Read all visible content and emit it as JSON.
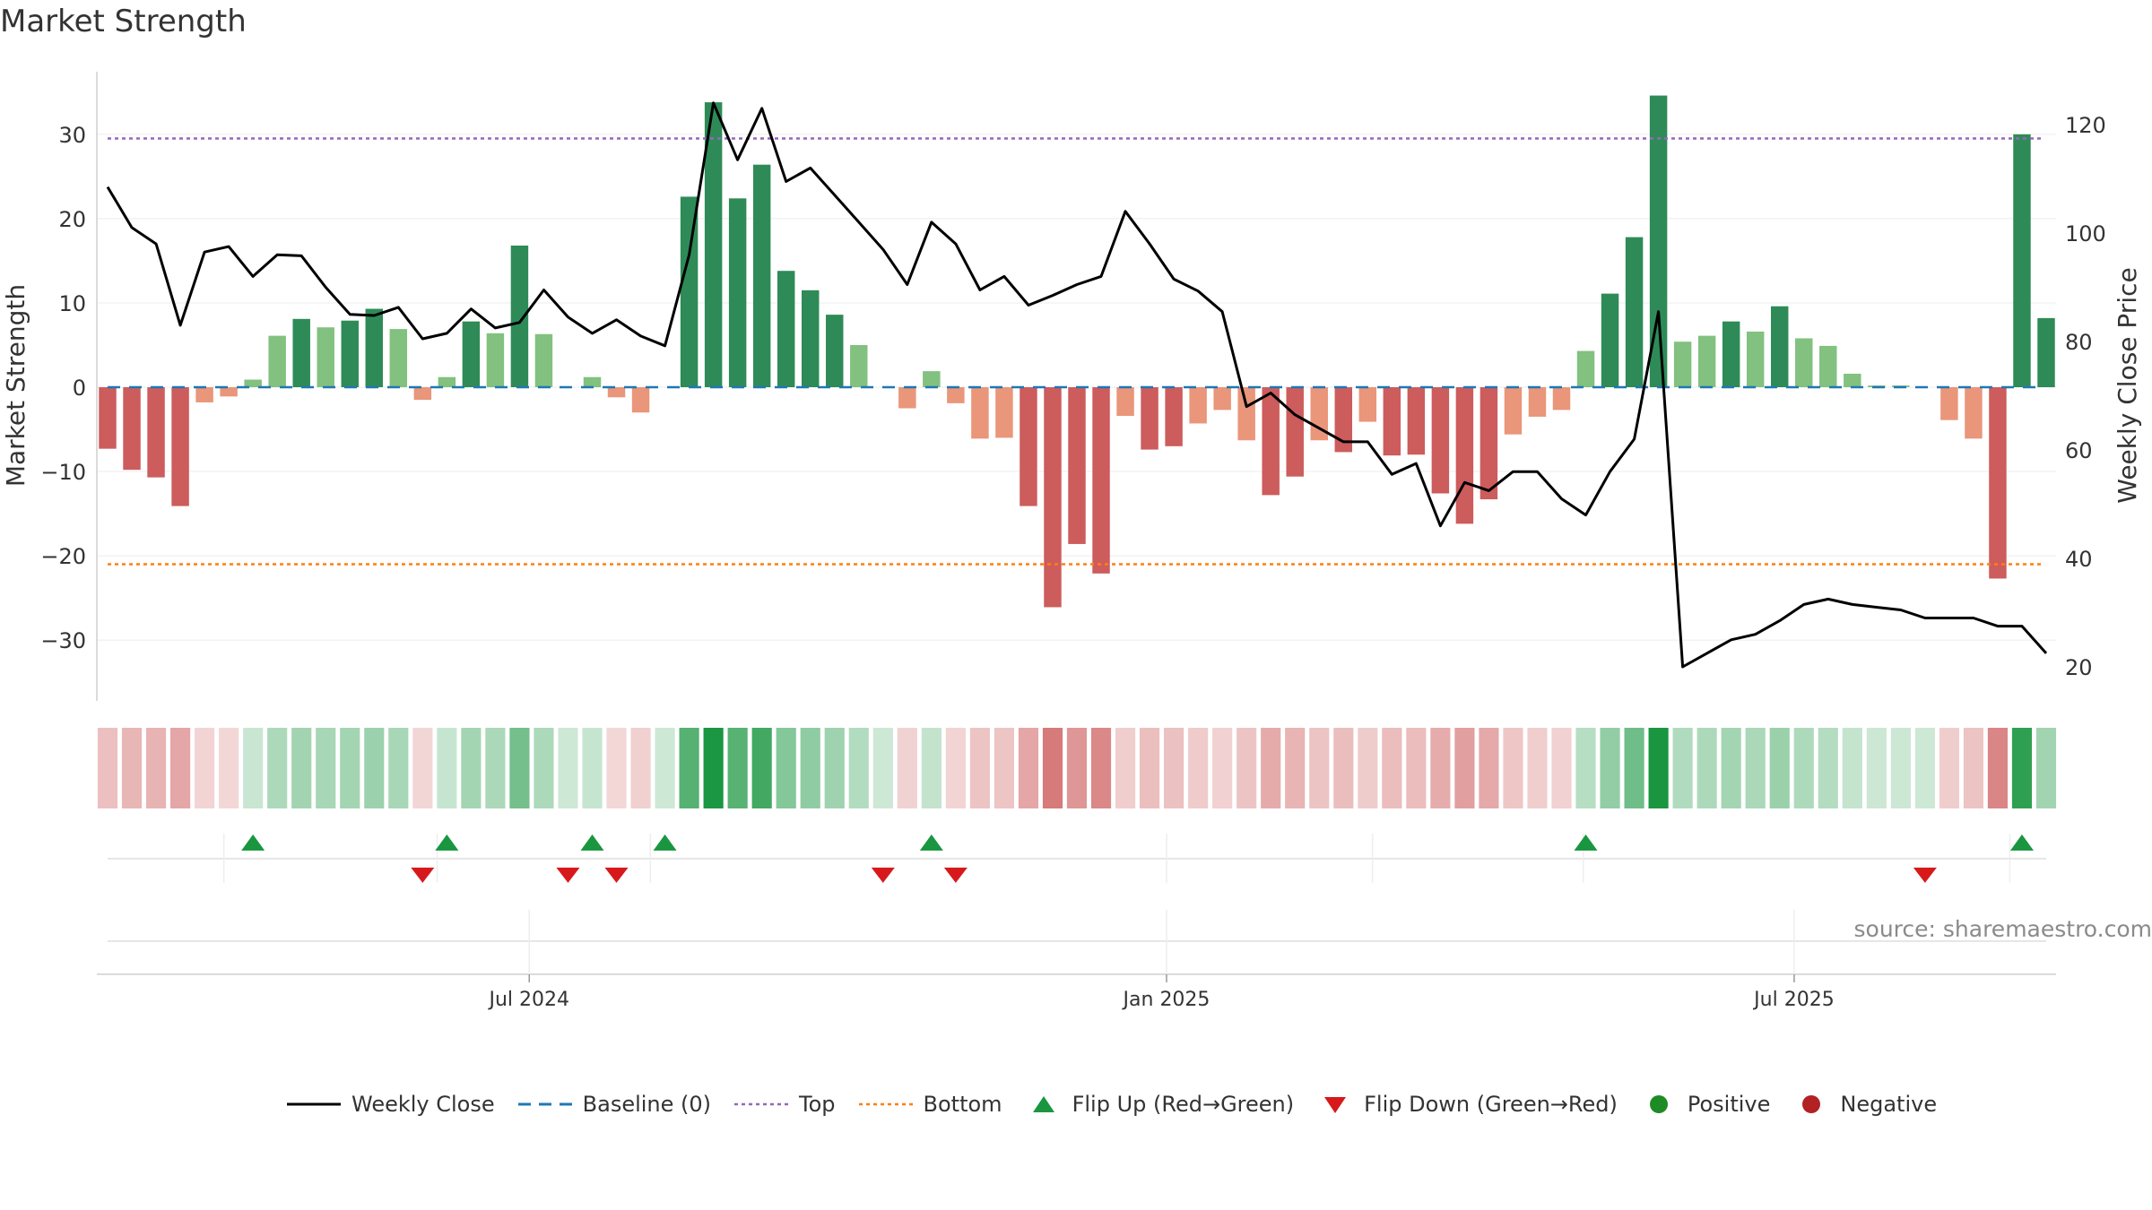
{
  "chart_data": {
    "type": "bar",
    "title": "Market Strength",
    "ylabel": "Market Strength",
    "y2label": "Weekly Close Price",
    "ylim": [
      -37,
      37
    ],
    "y2lim": [
      17,
      130
    ],
    "yticks": [
      30,
      20,
      10,
      0,
      -10,
      -20,
      -30
    ],
    "y2ticks": [
      120,
      100,
      80,
      60,
      40,
      20
    ],
    "y_tick_labels": [
      "30",
      "20",
      "10",
      "0",
      "−10",
      "−20",
      "−30"
    ],
    "y2_tick_labels": [
      "120",
      "100",
      "80",
      "60",
      "40",
      "20"
    ],
    "x_tick_labels": [
      "Jul 2024",
      "Jan 2025",
      "Jul 2025"
    ],
    "x_tick_positions_week": [
      17.4,
      43.7,
      69.6
    ],
    "top_line": 29.5,
    "bottom_line": -21,
    "strength": [
      -7.3,
      -9.8,
      -10.7,
      -14.1,
      -1.8,
      -1.1,
      0.9,
      6.1,
      8.1,
      7.1,
      7.9,
      9.3,
      6.9,
      -1.5,
      1.2,
      7.8,
      6.4,
      16.8,
      6.3,
      0,
      1.2,
      -1.2,
      -3.0,
      0,
      22.6,
      33.8,
      22.4,
      26.4,
      13.8,
      11.5,
      8.6,
      5.0,
      0,
      -2.5,
      1.9,
      -1.9,
      -6.1,
      -6.0,
      -14.1,
      -26.1,
      -18.6,
      -22.1,
      -3.4,
      -7.4,
      -7.0,
      -4.3,
      -2.7,
      -6.3,
      -12.8,
      -10.6,
      -6.3,
      -7.7,
      -4.1,
      -8.1,
      -8.0,
      -12.6,
      -16.2,
      -13.3,
      -5.6,
      -3.5,
      -2.7,
      4.3,
      11.1,
      17.8,
      34.6,
      5.4,
      6.1,
      7.8,
      6.6,
      9.6,
      5.8,
      4.9,
      1.6,
      0.2,
      0.2,
      0,
      -3.9,
      -6.1,
      -22.7,
      30.0,
      8.2
    ],
    "weekly_close": [
      108.5,
      101,
      98,
      83,
      96.5,
      97.5,
      92,
      96,
      95.8,
      90,
      85,
      84.8,
      86.3,
      80.5,
      81.5,
      86,
      82.5,
      83.5,
      89.5,
      84.5,
      81.5,
      84,
      81,
      79.2,
      96,
      124,
      113.5,
      123,
      109.5,
      112,
      107,
      102,
      97,
      90.5,
      102,
      98,
      89.5,
      92,
      86.7,
      88.5,
      90.5,
      92,
      104,
      98,
      91.5,
      89.3,
      85.5,
      68,
      70.5,
      66.5,
      64,
      61.5,
      61.5,
      55.5,
      57.5,
      46,
      54,
      52.5,
      56,
      56,
      51,
      48,
      56,
      62,
      85.5,
      20,
      22.5,
      25,
      26,
      28.5,
      31.5,
      32.5,
      31.5,
      31,
      30.5,
      29,
      29,
      29,
      27.5,
      27.5,
      22.5
    ],
    "flip_up_weeks": [
      6,
      14,
      20,
      23,
      34,
      61,
      79
    ],
    "flip_down_weeks": [
      13,
      19,
      21,
      32,
      35,
      75
    ],
    "legend": [
      "Weekly Close",
      "Baseline (0)",
      "Top",
      "Bottom",
      "Flip Up (Red→Green)",
      "Flip Down (Green→Red)",
      "Positive",
      "Negative"
    ],
    "colors": {
      "strong_positive": "#2e8b57",
      "weak_positive": "#82c17f",
      "strong_negative": "#cd5c5c",
      "weak_negative": "#e9967a",
      "close_line": "#000000",
      "baseline": "#1f77b4",
      "top": "#9467bd",
      "bottom": "#ff7f0e",
      "flip_up": "#1a9641",
      "flip_down": "#d7191c",
      "positive_dot": "#1f8b24",
      "negative_dot": "#b22222"
    }
  },
  "source_text": "source: sharemaestro.com"
}
